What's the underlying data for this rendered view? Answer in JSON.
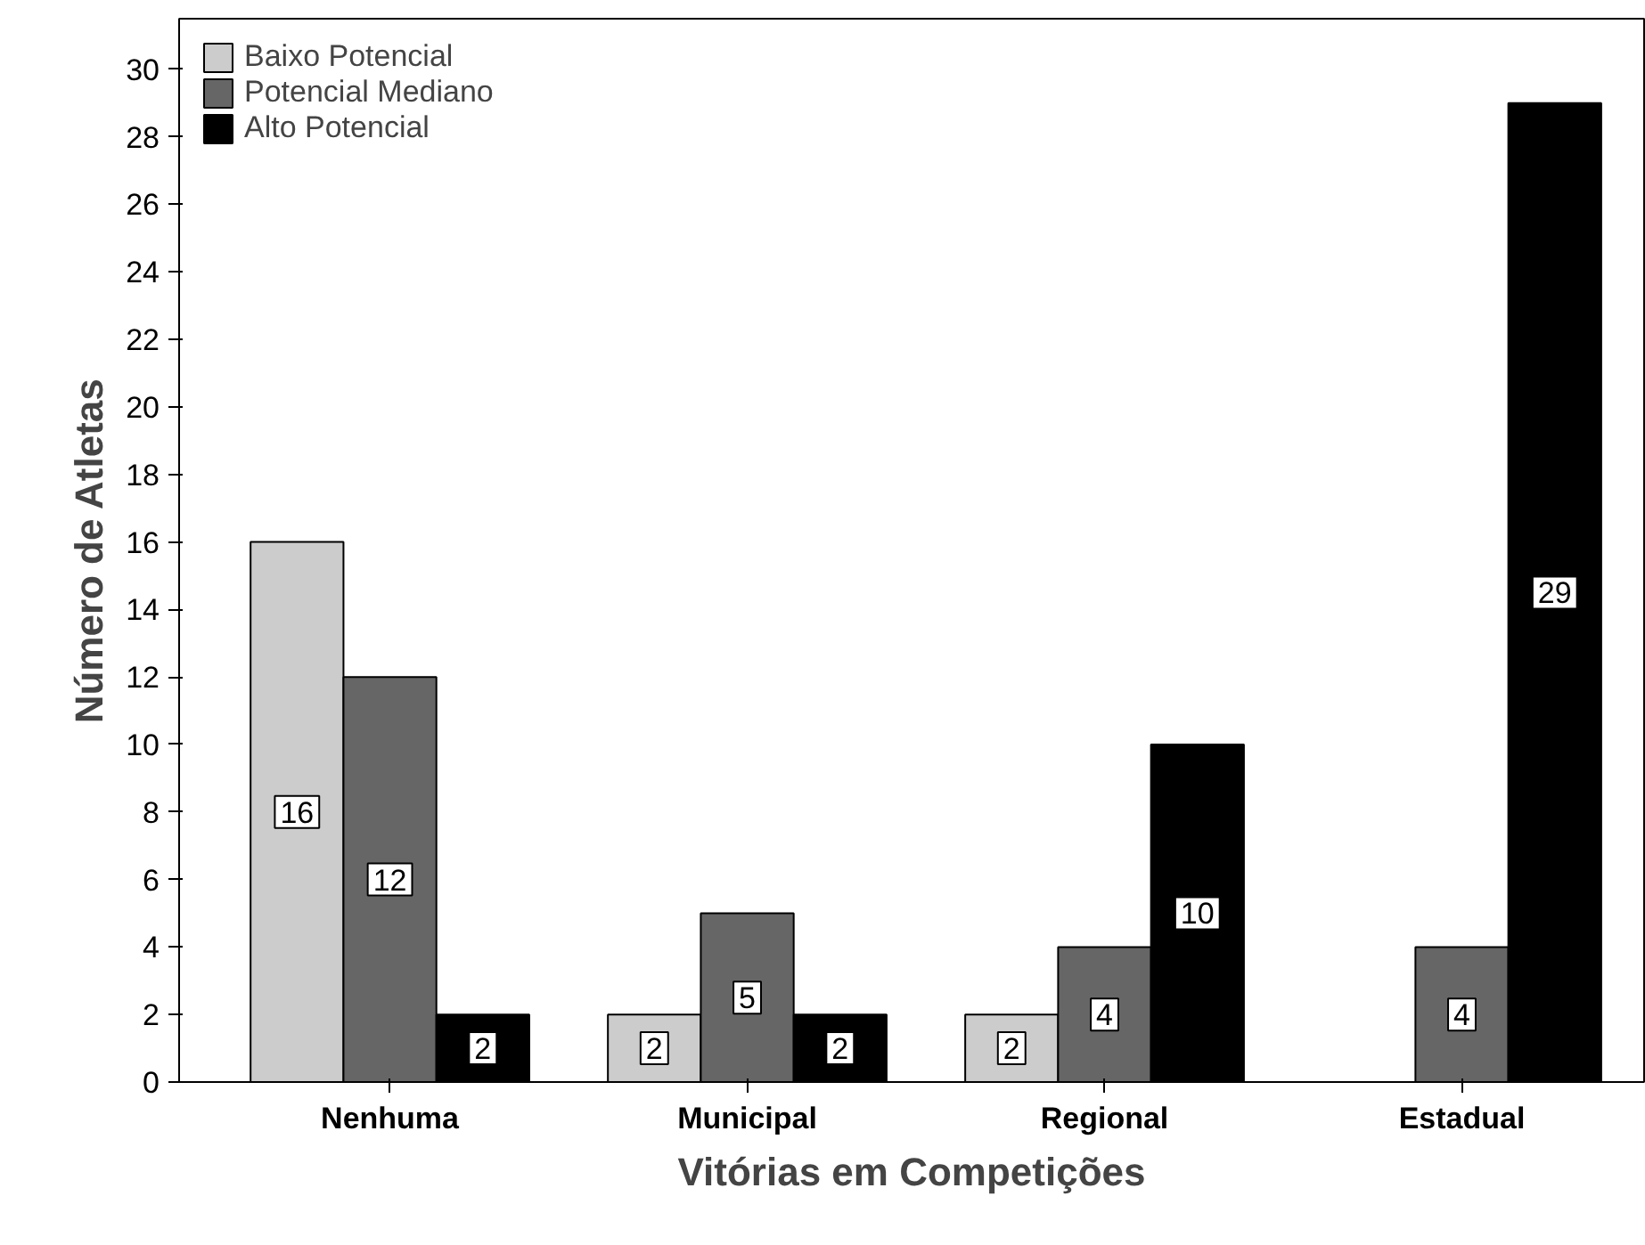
{
  "chart_data": {
    "type": "bar",
    "xlabel": "Vitórias em Competições",
    "ylabel": "Número de Atletas",
    "categories": [
      "Nenhuma",
      "Municipal",
      "Regional",
      "Estadual"
    ],
    "series": [
      {
        "name": "Baixo Potencial",
        "color": "#cccccc",
        "values": [
          16,
          2,
          2,
          null
        ]
      },
      {
        "name": "Potencial Mediano",
        "color": "#666666",
        "values": [
          12,
          5,
          4,
          4
        ]
      },
      {
        "name": "Alto Potencial",
        "color": "#000000",
        "values": [
          2,
          2,
          10,
          29
        ]
      }
    ],
    "ylim": [
      0,
      31.5
    ],
    "yticks": [
      0,
      2,
      4,
      6,
      8,
      10,
      12,
      14,
      16,
      18,
      20,
      22,
      24,
      26,
      28,
      30
    ],
    "data_labels": true,
    "legend": "top left",
    "grid": false
  }
}
